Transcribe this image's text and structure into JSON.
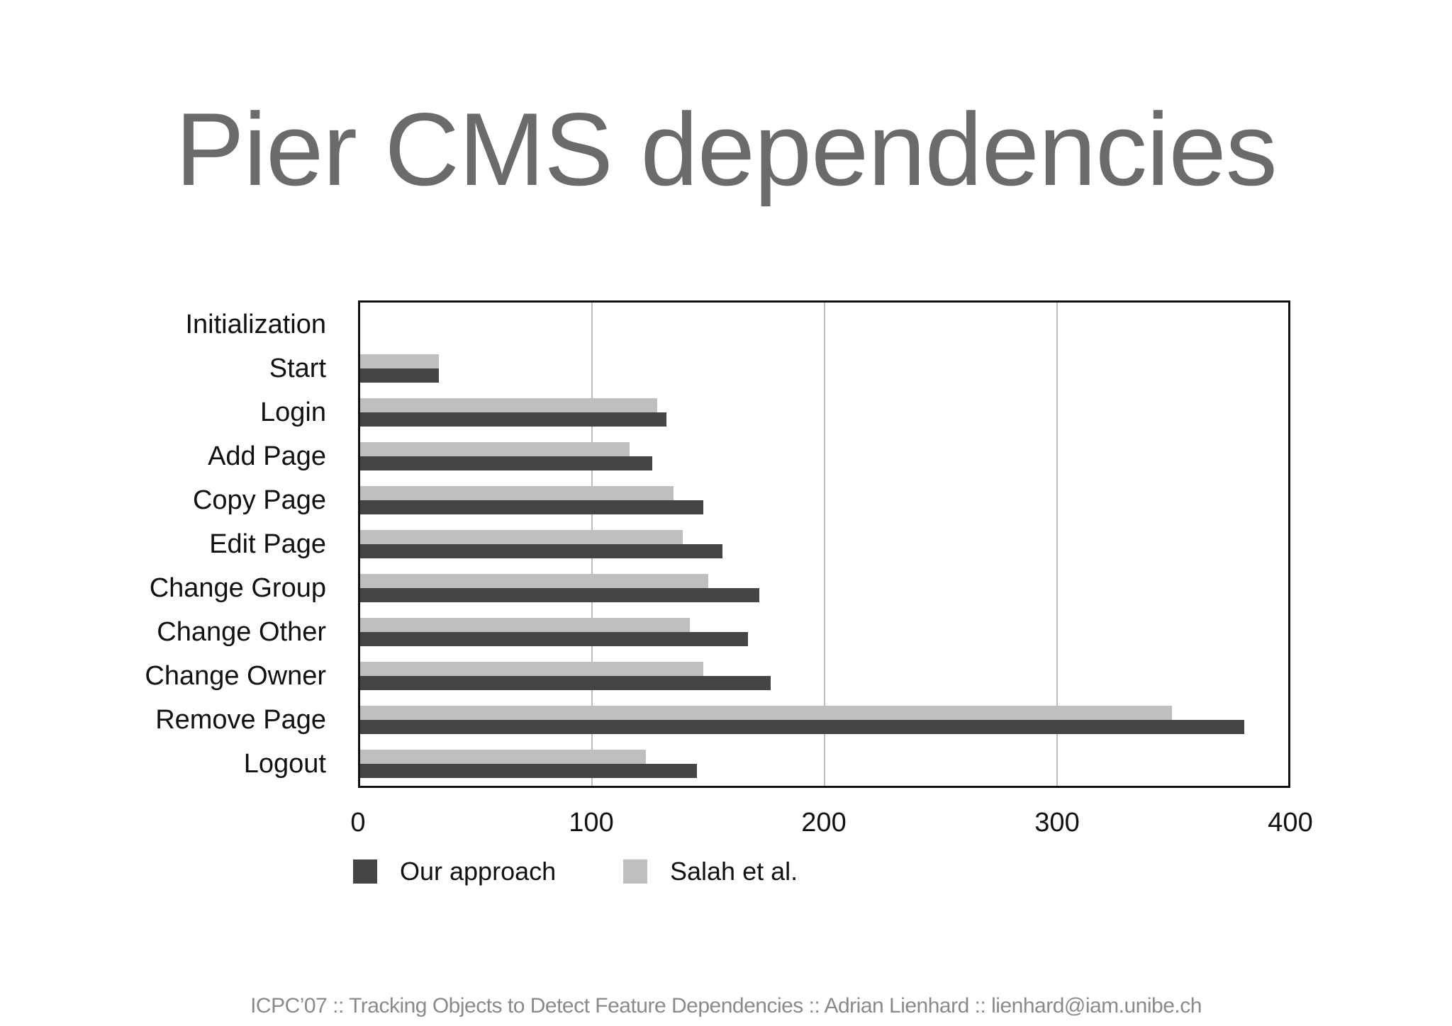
{
  "slide": {
    "title": "Pier CMS dependencies",
    "footer": "ICPC’07 :: Tracking Objects to Detect Feature Dependencies :: Adrian Lienhard :: lienhard@iam.unibe.ch"
  },
  "colors": {
    "title": "#6b6b6b",
    "our_approach": "#444444",
    "salah": "#bfbfbf",
    "grid": "#bdbdbd",
    "footer": "#8a8a8a"
  },
  "legend": {
    "series0": "Our approach",
    "series1": "Salah et al."
  },
  "axis": {
    "ticks": [
      "0",
      "100",
      "200",
      "300",
      "400"
    ]
  },
  "chart_data": {
    "type": "bar",
    "orientation": "horizontal",
    "title": "Pier CMS dependencies",
    "xlabel": "",
    "ylabel": "",
    "xlim": [
      0,
      400
    ],
    "xticks": [
      0,
      100,
      200,
      300,
      400
    ],
    "grid": true,
    "legend_position": "bottom",
    "categories": [
      "Initialization",
      "Start",
      "Login",
      "Add Page",
      "Copy Page",
      "Edit Page",
      "Change Group",
      "Change Other",
      "Change Owner",
      "Remove Page",
      "Logout"
    ],
    "series": [
      {
        "name": "Our approach",
        "color": "#444444",
        "values": [
          0,
          34,
          132,
          126,
          148,
          156,
          172,
          167,
          177,
          381,
          145
        ]
      },
      {
        "name": "Salah et al.",
        "color": "#bfbfbf",
        "values": [
          0,
          34,
          128,
          116,
          135,
          139,
          150,
          142,
          148,
          350,
          123
        ]
      }
    ]
  }
}
